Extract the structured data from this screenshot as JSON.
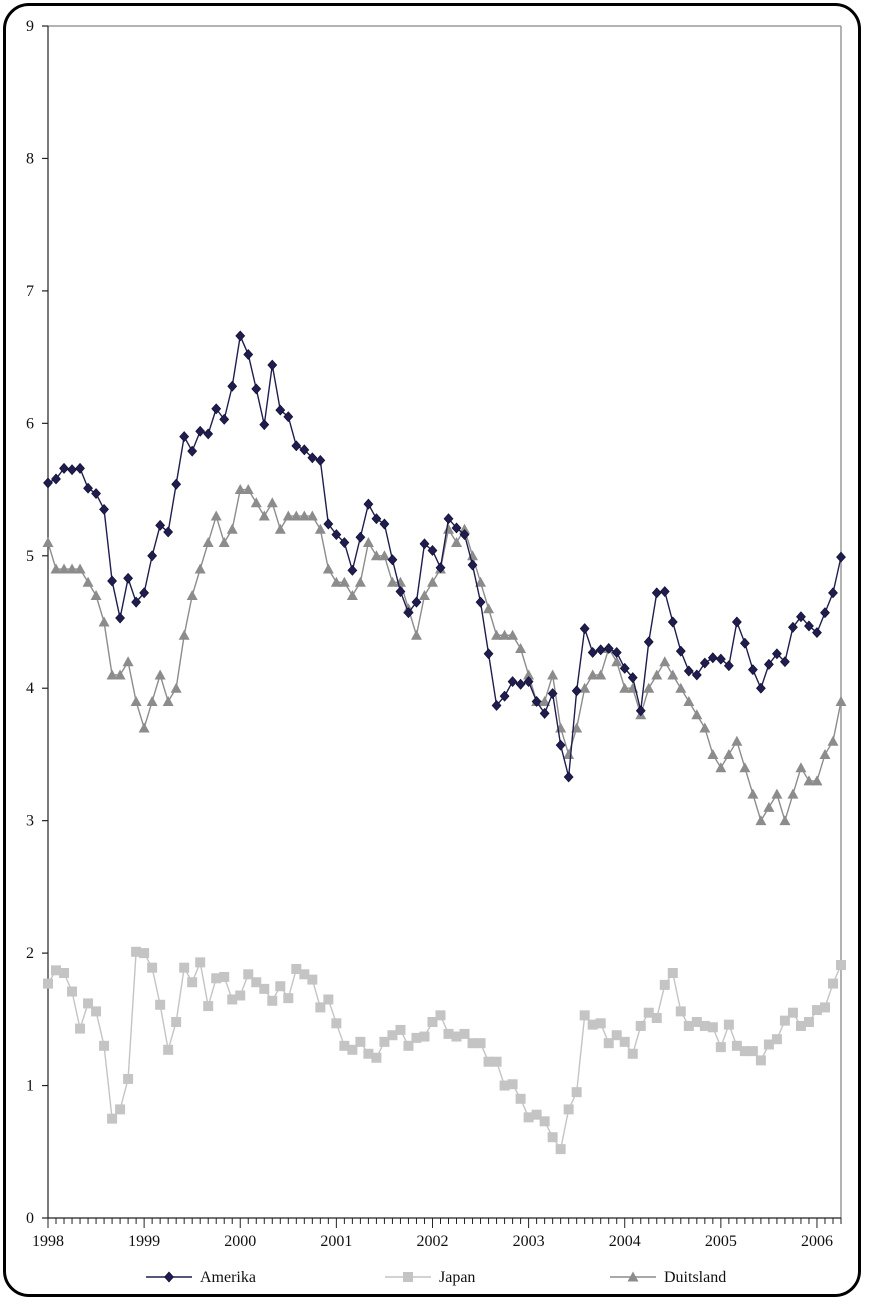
{
  "chart_data": {
    "type": "line",
    "x": [
      "1998-01",
      "1998-02",
      "1998-03",
      "1998-04",
      "1998-05",
      "1998-06",
      "1998-07",
      "1998-08",
      "1998-09",
      "1998-10",
      "1998-11",
      "1998-12",
      "1999-01",
      "1999-02",
      "1999-03",
      "1999-04",
      "1999-05",
      "1999-06",
      "1999-07",
      "1999-08",
      "1999-09",
      "1999-10",
      "1999-11",
      "1999-12",
      "2000-01",
      "2000-02",
      "2000-03",
      "2000-04",
      "2000-05",
      "2000-06",
      "2000-07",
      "2000-08",
      "2000-09",
      "2000-10",
      "2000-11",
      "2000-12",
      "2001-01",
      "2001-02",
      "2001-03",
      "2001-04",
      "2001-05",
      "2001-06",
      "2001-07",
      "2001-08",
      "2001-09",
      "2001-10",
      "2001-11",
      "2001-12",
      "2002-01",
      "2002-02",
      "2002-03",
      "2002-04",
      "2002-05",
      "2002-06",
      "2002-07",
      "2002-08",
      "2002-09",
      "2002-10",
      "2002-11",
      "2002-12",
      "2003-01",
      "2003-02",
      "2003-03",
      "2003-04",
      "2003-05",
      "2003-06",
      "2003-07",
      "2003-08",
      "2003-09",
      "2003-10",
      "2003-11",
      "2003-12",
      "2004-01",
      "2004-02",
      "2004-03",
      "2004-04",
      "2004-05",
      "2004-06",
      "2004-07",
      "2004-08",
      "2004-09",
      "2004-10",
      "2004-11",
      "2004-12",
      "2005-01",
      "2005-02",
      "2005-03",
      "2005-04",
      "2005-05",
      "2005-06",
      "2005-07",
      "2005-08",
      "2005-09",
      "2005-10",
      "2005-11",
      "2005-12",
      "2006-01",
      "2006-02",
      "2006-03",
      "2006-04"
    ],
    "series": [
      {
        "name": "Amerika",
        "color": "#1f1d4f",
        "marker": "diamond",
        "values": [
          5.55,
          5.58,
          5.66,
          5.65,
          5.66,
          5.51,
          5.47,
          5.35,
          4.81,
          4.53,
          4.83,
          4.65,
          4.72,
          5.0,
          5.23,
          5.18,
          5.54,
          5.9,
          5.79,
          5.94,
          5.92,
          6.11,
          6.03,
          6.28,
          6.66,
          6.52,
          6.26,
          5.99,
          6.44,
          6.1,
          6.05,
          5.83,
          5.8,
          5.74,
          5.72,
          5.24,
          5.16,
          5.1,
          4.89,
          5.14,
          5.39,
          5.28,
          5.24,
          4.97,
          4.73,
          4.57,
          4.65,
          5.09,
          5.04,
          4.91,
          5.28,
          5.21,
          5.16,
          4.93,
          4.65,
          4.26,
          3.87,
          3.94,
          4.05,
          4.03,
          4.05,
          3.9,
          3.81,
          3.96,
          3.57,
          3.33,
          3.98,
          4.45,
          4.27,
          4.29,
          4.3,
          4.27,
          4.15,
          4.08,
          3.83,
          4.35,
          4.72,
          4.73,
          4.5,
          4.28,
          4.13,
          4.1,
          4.19,
          4.23,
          4.22,
          4.17,
          4.5,
          4.34,
          4.14,
          4.0,
          4.18,
          4.26,
          4.2,
          4.46,
          4.54,
          4.47,
          4.42,
          4.57,
          4.72,
          4.99
        ]
      },
      {
        "name": "Japan",
        "color": "#c4c4c4",
        "marker": "square",
        "values": [
          1.77,
          1.87,
          1.85,
          1.71,
          1.43,
          1.62,
          1.56,
          1.3,
          0.75,
          0.82,
          1.05,
          2.01,
          2.0,
          1.89,
          1.61,
          1.27,
          1.48,
          1.89,
          1.78,
          1.93,
          1.6,
          1.81,
          1.82,
          1.65,
          1.68,
          1.84,
          1.78,
          1.73,
          1.64,
          1.75,
          1.66,
          1.88,
          1.84,
          1.8,
          1.59,
          1.65,
          1.47,
          1.3,
          1.27,
          1.33,
          1.24,
          1.21,
          1.33,
          1.38,
          1.42,
          1.3,
          1.36,
          1.37,
          1.48,
          1.53,
          1.39,
          1.37,
          1.39,
          1.32,
          1.32,
          1.18,
          1.18,
          1.0,
          1.01,
          0.9,
          0.76,
          0.78,
          0.73,
          0.61,
          0.52,
          0.82,
          0.95,
          1.53,
          1.46,
          1.47,
          1.32,
          1.38,
          1.33,
          1.24,
          1.45,
          1.55,
          1.51,
          1.76,
          1.85,
          1.56,
          1.45,
          1.48,
          1.45,
          1.44,
          1.29,
          1.46,
          1.3,
          1.26,
          1.26,
          1.19,
          1.31,
          1.35,
          1.49,
          1.55,
          1.45,
          1.48,
          1.57,
          1.59,
          1.77,
          1.91
        ]
      },
      {
        "name": "Duitsland",
        "color": "#8c8c8c",
        "marker": "triangle",
        "values": [
          5.1,
          4.9,
          4.9,
          4.9,
          4.9,
          4.8,
          4.7,
          4.5,
          4.1,
          4.1,
          4.2,
          3.9,
          3.7,
          3.9,
          4.1,
          3.9,
          4.0,
          4.4,
          4.7,
          4.9,
          5.1,
          5.3,
          5.1,
          5.2,
          5.5,
          5.5,
          5.4,
          5.3,
          5.4,
          5.2,
          5.3,
          5.3,
          5.3,
          5.3,
          5.2,
          4.9,
          4.8,
          4.8,
          4.7,
          4.8,
          5.1,
          5.0,
          5.0,
          4.8,
          4.8,
          4.6,
          4.4,
          4.7,
          4.8,
          4.9,
          5.2,
          5.1,
          5.2,
          5.0,
          4.8,
          4.6,
          4.4,
          4.4,
          4.4,
          4.3,
          4.1,
          3.9,
          3.9,
          4.1,
          3.7,
          3.5,
          3.7,
          4.0,
          4.1,
          4.1,
          4.3,
          4.2,
          4.0,
          4.0,
          3.8,
          4.0,
          4.1,
          4.2,
          4.1,
          4.0,
          3.9,
          3.8,
          3.7,
          3.5,
          3.4,
          3.5,
          3.6,
          3.4,
          3.2,
          3.0,
          3.1,
          3.2,
          3.0,
          3.2,
          3.4,
          3.3,
          3.3,
          3.5,
          3.6,
          3.9
        ]
      }
    ],
    "x_tick_labels": [
      "1998",
      "1999",
      "2000",
      "2001",
      "2002",
      "2003",
      "2004",
      "2005",
      "2006"
    ],
    "y_tick_labels": [
      "0",
      "1",
      "2",
      "3",
      "4",
      "5",
      "6",
      "7",
      "8",
      "9"
    ],
    "ylim": [
      0,
      9
    ],
    "xlim": [
      "1998-01",
      "2006-04"
    ],
    "grid": false,
    "legend_position": "bottom",
    "title": "",
    "xlabel": "",
    "ylabel": ""
  }
}
